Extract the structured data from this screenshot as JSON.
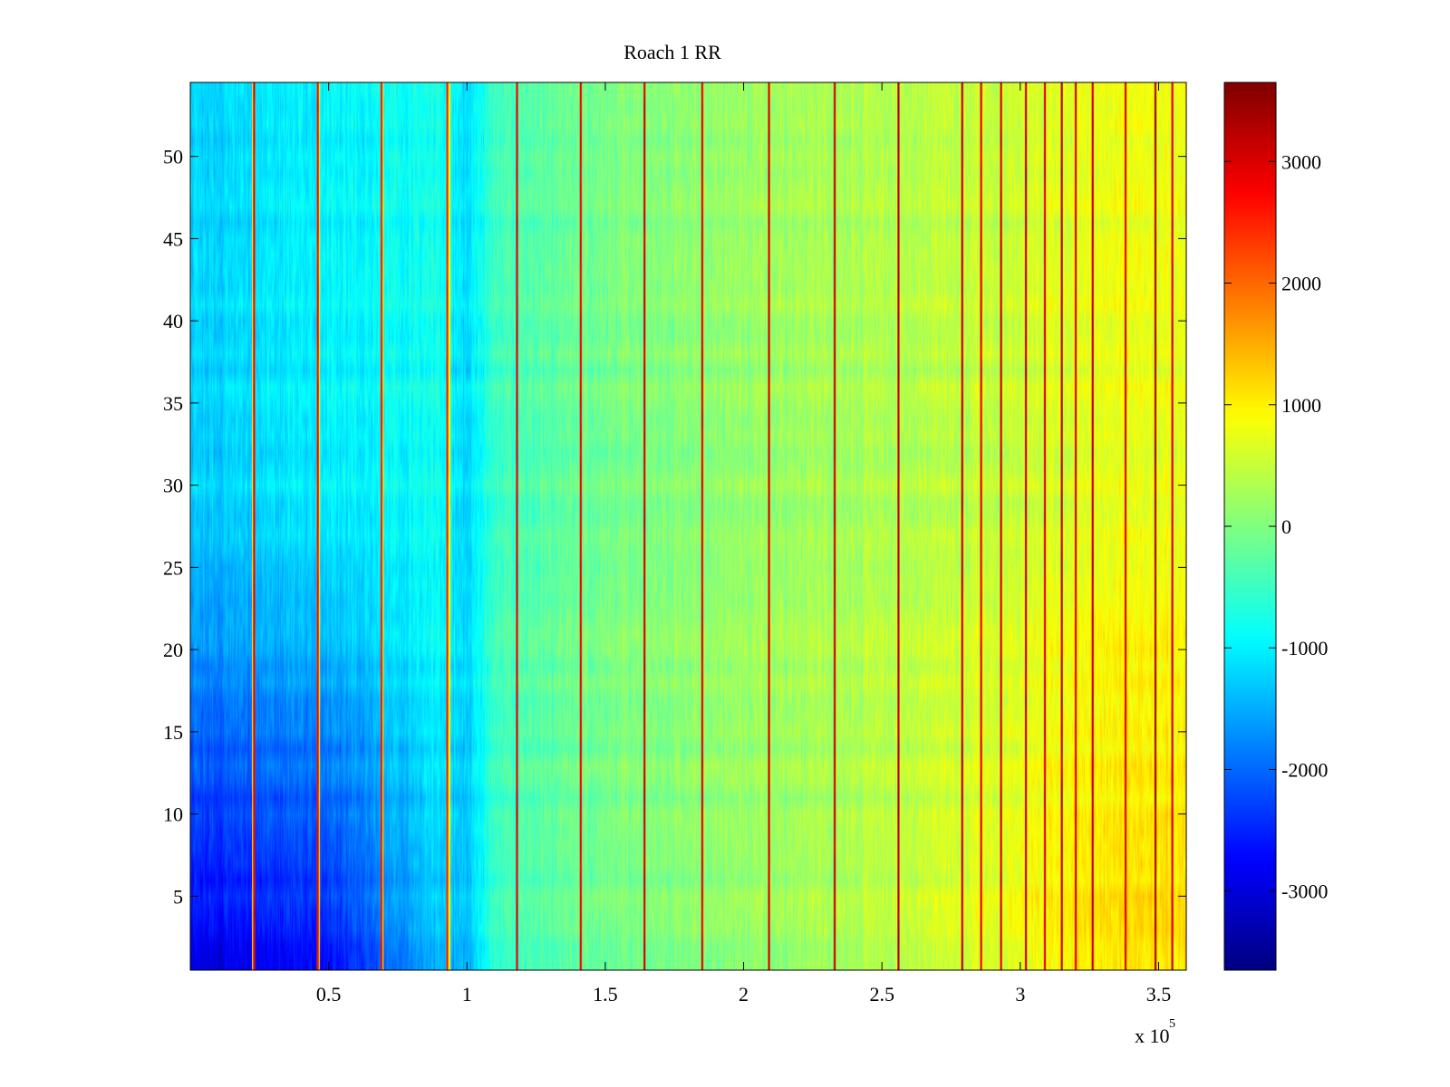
{
  "chart_data": {
    "type": "heatmap",
    "title": "Roach 1 RR",
    "xlabel": "",
    "ylabel": "",
    "xlim": [
      0,
      360000
    ],
    "ylim": [
      0.5,
      54.5
    ],
    "x_ticks": [
      50000,
      100000,
      150000,
      200000,
      250000,
      300000,
      350000
    ],
    "x_tick_labels": [
      "0.5",
      "1",
      "1.5",
      "2",
      "2.5",
      "3",
      "3.5"
    ],
    "x_multiplier_label": "x 10",
    "x_multiplier_exponent": "5",
    "y_ticks": [
      5,
      10,
      15,
      20,
      25,
      30,
      35,
      40,
      45,
      50
    ],
    "y_tick_labels": [
      "5",
      "10",
      "15",
      "20",
      "25",
      "30",
      "35",
      "40",
      "45",
      "50"
    ],
    "rows": 54,
    "colorbar": {
      "colormap": "jet",
      "clim": [
        -3650,
        3650
      ],
      "ticks": [
        -3000,
        -2000,
        -1000,
        0,
        1000,
        2000,
        3000
      ],
      "tick_labels": [
        "-3000",
        "-2000",
        "-1000",
        "0",
        "1000",
        "2000",
        "3000"
      ]
    },
    "trend_profile": {
      "x": [
        0,
        20000,
        40000,
        60000,
        90000,
        100000,
        110000,
        150000,
        200000,
        250000,
        300000,
        330000,
        360000
      ],
      "base_value": [
        -1250,
        -1150,
        -1050,
        -950,
        -800,
        -1200,
        -450,
        -50,
        150,
        350,
        550,
        750,
        800
      ]
    },
    "row_effect": {
      "note": "lower rows are more negative near x < 110000, more positive near x > 250000",
      "low_x_bottom_offset": -1600,
      "high_x_bottom_offset": 400
    },
    "spike_lines": {
      "x": [
        23000,
        46000,
        69000,
        93000,
        118000,
        141000,
        164000,
        185000,
        209000,
        233000,
        256000,
        279000,
        286000,
        293000,
        302000,
        309000,
        315000,
        320000,
        326000,
        338000,
        349000,
        355000
      ],
      "value": [
        2800,
        2700,
        2600,
        2500,
        2900,
        2800,
        3000,
        2900,
        3000,
        3100,
        3200,
        3100,
        2800,
        3000,
        3100,
        2900,
        3200,
        3000,
        3100,
        3000,
        3300,
        2900
      ]
    },
    "pale_lines": {
      "x": [
        22500,
        46500,
        69500,
        93500
      ],
      "value": [
        900,
        850,
        900,
        950
      ]
    }
  }
}
